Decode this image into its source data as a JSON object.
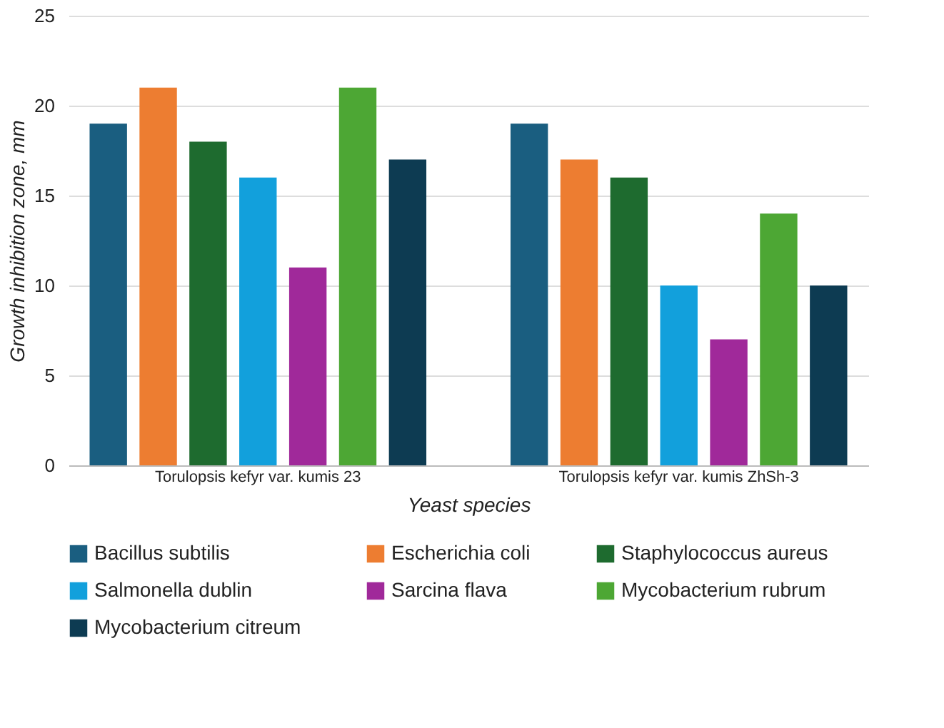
{
  "chart_data": {
    "type": "bar",
    "xlabel": "Yeast species",
    "ylabel": "Growth inhibition zone, mm",
    "categories": [
      "Torulopsis kefyr var. kumis 23",
      "Torulopsis kefyr var. kumis ZhSh-3"
    ],
    "series": [
      {
        "name": "Bacillus subtilis",
        "color": "#1a5e80",
        "values": [
          19,
          19
        ]
      },
      {
        "name": "Escherichia coli",
        "color": "#ed7d31",
        "values": [
          21,
          17
        ]
      },
      {
        "name": "Staphylococcus aureus",
        "color": "#1e6b2f",
        "values": [
          18,
          16
        ]
      },
      {
        "name": "Salmonella dublin",
        "color": "#12a0dc",
        "values": [
          16,
          10
        ]
      },
      {
        "name": "Sarcina flava",
        "color": "#a0299a",
        "values": [
          11,
          7
        ]
      },
      {
        "name": "Mycobacterium rubrum",
        "color": "#4da734",
        "values": [
          21,
          14
        ]
      },
      {
        "name": "Mycobacterium citreum",
        "color": "#0d3b52",
        "values": [
          17,
          10
        ]
      }
    ],
    "ylim": [
      0,
      25
    ],
    "yticks": [
      0,
      5,
      10,
      15,
      20,
      25
    ],
    "grid": "y",
    "legend": "bottom"
  }
}
